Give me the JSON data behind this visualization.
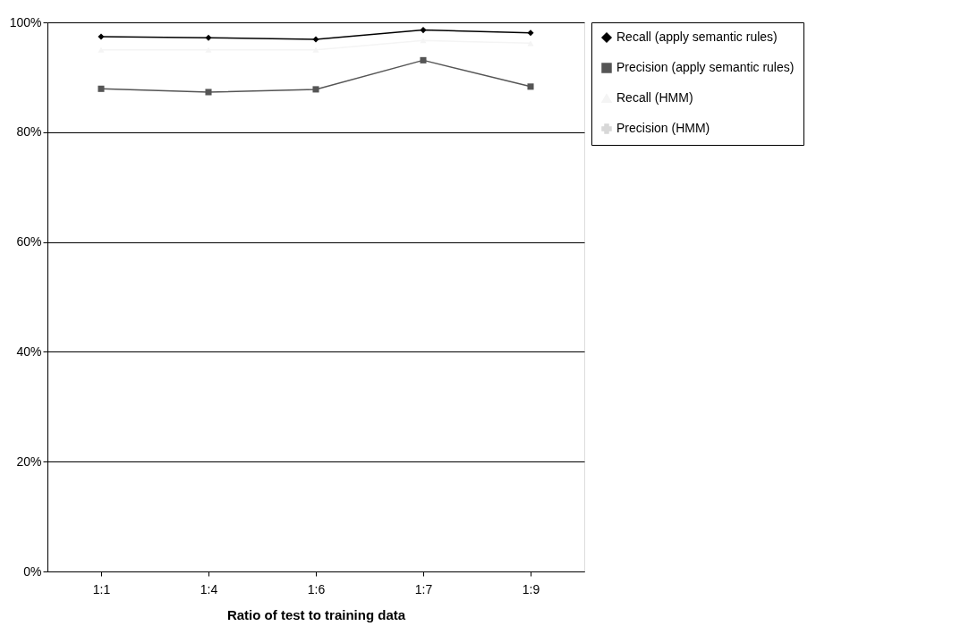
{
  "chart_data": {
    "type": "line",
    "xlabel": "Ratio of test to training data",
    "categories": [
      "1:1",
      "1:4",
      "1:6",
      "1:7",
      "1:9"
    ],
    "series": [
      {
        "name": "Recall (apply semantic rules)",
        "color": "#000000",
        "marker": "diamond",
        "values": [
          97.4,
          97.2,
          96.9,
          98.6,
          98.1
        ]
      },
      {
        "name": "Precision (apply semantic rules)",
        "color": "#555555",
        "marker": "square",
        "values": [
          87.9,
          87.3,
          87.8,
          93.1,
          88.3
        ]
      },
      {
        "name": "Recall (HMM)",
        "color": "#f4f4f4",
        "marker": "triangle",
        "values": [
          95.0,
          95.0,
          95.0,
          96.7,
          96.2
        ]
      },
      {
        "name": "Precision (HMM)",
        "color": "#d8d8d8",
        "marker": "cross",
        "values": [
          null,
          null,
          null,
          null,
          null
        ]
      }
    ],
    "ylim": [
      0,
      100
    ],
    "yticks": [
      {
        "value": 0,
        "label": "0%"
      },
      {
        "value": 20,
        "label": "20%"
      },
      {
        "value": 40,
        "label": "40%"
      },
      {
        "value": 60,
        "label": "60%"
      },
      {
        "value": 80,
        "label": "80%"
      },
      {
        "value": 100,
        "label": "100%"
      }
    ],
    "grid": "y",
    "legend": "right"
  }
}
